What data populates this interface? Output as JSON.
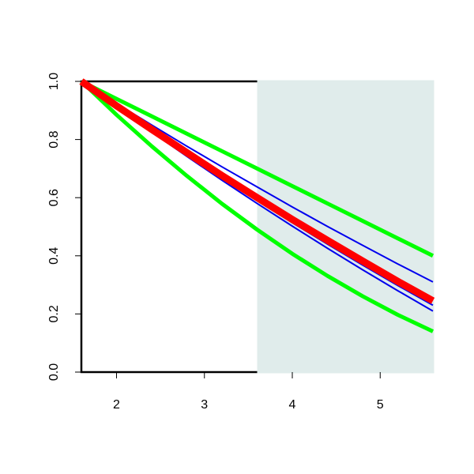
{
  "chart_data": {
    "type": "line",
    "x": [
      1.6,
      2.0,
      2.4,
      2.8,
      3.2,
      3.6,
      4.0,
      4.4,
      4.8,
      5.2,
      5.6
    ],
    "series": [
      {
        "color": "#00ff00",
        "width": 5,
        "values": [
          1.0,
          0.94,
          0.88,
          0.82,
          0.76,
          0.7,
          0.64,
          0.58,
          0.52,
          0.46,
          0.4
        ]
      },
      {
        "color": "#00ff00",
        "width": 5,
        "values": [
          1.0,
          0.885,
          0.777,
          0.675,
          0.579,
          0.49,
          0.407,
          0.331,
          0.261,
          0.197,
          0.14
        ]
      },
      {
        "color": "#0000ee",
        "width": 2,
        "values": [
          1.0,
          0.924,
          0.85,
          0.777,
          0.706,
          0.637,
          0.568,
          0.501,
          0.436,
          0.372,
          0.31
        ]
      },
      {
        "color": "#0000ee",
        "width": 2,
        "values": [
          1.0,
          0.914,
          0.83,
          0.748,
          0.668,
          0.59,
          0.514,
          0.44,
          0.368,
          0.298,
          0.23
        ]
      },
      {
        "color": "#0000ee",
        "width": 2,
        "values": [
          1.0,
          0.912,
          0.826,
          0.742,
          0.66,
          0.58,
          0.502,
          0.426,
          0.352,
          0.28,
          0.21
        ]
      },
      {
        "color": "#ff0000",
        "width": 9,
        "values": [
          1.0,
          0.916,
          0.835,
          0.755,
          0.676,
          0.6,
          0.525,
          0.453,
          0.382,
          0.312,
          0.245
        ]
      }
    ],
    "highlight": {
      "xlim": [
        3.6,
        5.6
      ],
      "color": "#e0eceb"
    },
    "xlim": [
      1.6,
      5.6
    ],
    "xticks": [
      2,
      3,
      4,
      5
    ],
    "ylim": [
      0,
      1
    ],
    "yticks": [
      {
        "value": 0,
        "label": "0.0"
      },
      0.2,
      0.4,
      0.6,
      0.8,
      {
        "value": 1,
        "label": "1.0"
      }
    ]
  }
}
